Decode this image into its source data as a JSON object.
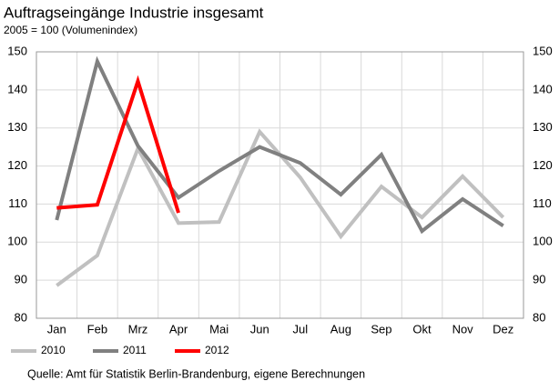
{
  "chart_data": {
    "type": "line",
    "title": "Auftragseingänge Industrie insgesamt",
    "subtitle": "2005 = 100 (Volumenindex)",
    "categories": [
      "Jan",
      "Feb",
      "Mrz",
      "Apr",
      "Mai",
      "Jun",
      "Jul",
      "Aug",
      "Sep",
      "Okt",
      "Nov",
      "Dez"
    ],
    "series": [
      {
        "name": "2010",
        "color": "#c0c0c0",
        "values": [
          88.6,
          96.5,
          124.6,
          105,
          105.3,
          129,
          117,
          101.5,
          114.6,
          106.5,
          117.3,
          106.5
        ]
      },
      {
        "name": "2011",
        "color": "#808080",
        "values": [
          105.8,
          147.5,
          125.3,
          111.7,
          118.7,
          125,
          120.8,
          112.5,
          123,
          102.9,
          111.3,
          104.3
        ]
      },
      {
        "name": "2012",
        "color": "#ff0000",
        "values": [
          109,
          109.8,
          142.3,
          107.7,
          null,
          null,
          null,
          null,
          null,
          null,
          null,
          null
        ]
      }
    ],
    "ylim": [
      80,
      150
    ],
    "yticks": [
      80,
      90,
      100,
      110,
      120,
      130,
      140,
      150
    ],
    "grid": true,
    "legend": "bottom-left",
    "source": "Quelle: Amt für Statistik Berlin-Brandenburg, eigene Berechnungen"
  }
}
